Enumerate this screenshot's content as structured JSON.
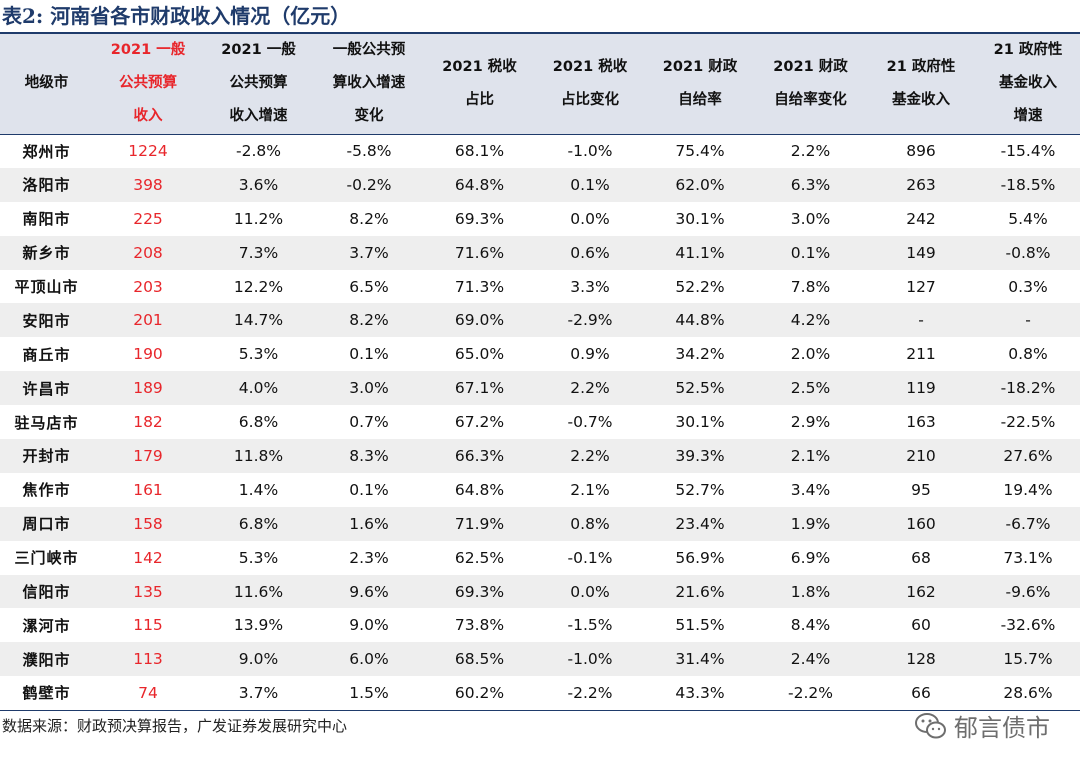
{
  "title": "表2:  河南省各市财政收入情况（亿元）",
  "headers": [
    {
      "lines": [
        "地级市"
      ],
      "red": false
    },
    {
      "lines": [
        "2021 一般",
        "公共预算",
        "收入"
      ],
      "red": true
    },
    {
      "lines": [
        "2021 一般",
        "公共预算",
        "收入增速"
      ],
      "red": false
    },
    {
      "lines": [
        "一般公共预",
        "算收入增速",
        "变化"
      ],
      "red": false
    },
    {
      "lines": [
        "2021 税收",
        "占比"
      ],
      "red": false
    },
    {
      "lines": [
        "2021 税收",
        "占比变化"
      ],
      "red": false
    },
    {
      "lines": [
        "2021 财政",
        "自给率"
      ],
      "red": false
    },
    {
      "lines": [
        "2021 财政",
        "自给率变化"
      ],
      "red": false
    },
    {
      "lines": [
        "21 政府性",
        "基金收入"
      ],
      "red": false
    },
    {
      "lines": [
        "21 政府性",
        "基金收入",
        "增速"
      ],
      "red": false
    }
  ],
  "rows": [
    [
      "郑州市",
      "1224",
      "-2.8%",
      "-5.8%",
      "68.1%",
      "-1.0%",
      "75.4%",
      "2.2%",
      "896",
      "-15.4%"
    ],
    [
      "洛阳市",
      "398",
      "3.6%",
      "-0.2%",
      "64.8%",
      "0.1%",
      "62.0%",
      "6.3%",
      "263",
      "-18.5%"
    ],
    [
      "南阳市",
      "225",
      "11.2%",
      "8.2%",
      "69.3%",
      "0.0%",
      "30.1%",
      "3.0%",
      "242",
      "5.4%"
    ],
    [
      "新乡市",
      "208",
      "7.3%",
      "3.7%",
      "71.6%",
      "0.6%",
      "41.1%",
      "0.1%",
      "149",
      "-0.8%"
    ],
    [
      "平顶山市",
      "203",
      "12.2%",
      "6.5%",
      "71.3%",
      "3.3%",
      "52.2%",
      "7.8%",
      "127",
      "0.3%"
    ],
    [
      "安阳市",
      "201",
      "14.7%",
      "8.2%",
      "69.0%",
      "-2.9%",
      "44.8%",
      "4.2%",
      "-",
      "-"
    ],
    [
      "商丘市",
      "190",
      "5.3%",
      "0.1%",
      "65.0%",
      "0.9%",
      "34.2%",
      "2.0%",
      "211",
      "0.8%"
    ],
    [
      "许昌市",
      "189",
      "4.0%",
      "3.0%",
      "67.1%",
      "2.2%",
      "52.5%",
      "2.5%",
      "119",
      "-18.2%"
    ],
    [
      "驻马店市",
      "182",
      "6.8%",
      "0.7%",
      "67.2%",
      "-0.7%",
      "30.1%",
      "2.9%",
      "163",
      "-22.5%"
    ],
    [
      "开封市",
      "179",
      "11.8%",
      "8.3%",
      "66.3%",
      "2.2%",
      "39.3%",
      "2.1%",
      "210",
      "27.6%"
    ],
    [
      "焦作市",
      "161",
      "1.4%",
      "0.1%",
      "64.8%",
      "2.1%",
      "52.7%",
      "3.4%",
      "95",
      "19.4%"
    ],
    [
      "周口市",
      "158",
      "6.8%",
      "1.6%",
      "71.9%",
      "0.8%",
      "23.4%",
      "1.9%",
      "160",
      "-6.7%"
    ],
    [
      "三门峡市",
      "142",
      "5.3%",
      "2.3%",
      "62.5%",
      "-0.1%",
      "56.9%",
      "6.9%",
      "68",
      "73.1%"
    ],
    [
      "信阳市",
      "135",
      "11.6%",
      "9.6%",
      "69.3%",
      "0.0%",
      "21.6%",
      "1.8%",
      "162",
      "-9.6%"
    ],
    [
      "漯河市",
      "115",
      "13.9%",
      "9.0%",
      "73.8%",
      "-1.5%",
      "51.5%",
      "8.4%",
      "60",
      "-32.6%"
    ],
    [
      "濮阳市",
      "113",
      "9.0%",
      "6.0%",
      "68.5%",
      "-1.0%",
      "31.4%",
      "2.4%",
      "128",
      "15.7%"
    ],
    [
      "鹤壁市",
      "74",
      "3.7%",
      "1.5%",
      "60.2%",
      "-2.2%",
      "43.3%",
      "-2.2%",
      "66",
      "28.6%"
    ]
  ],
  "source": "数据来源：财政预决算报告，广发证券发展研究中心",
  "watermark": {
    "text": "郁言债市",
    "icon": "wechat-icon"
  },
  "colors": {
    "accent_red": "#e8262b",
    "header_bg": "#dfe3ec",
    "stripe_bg": "#eeeeee",
    "rule": "#1f3b6b"
  }
}
